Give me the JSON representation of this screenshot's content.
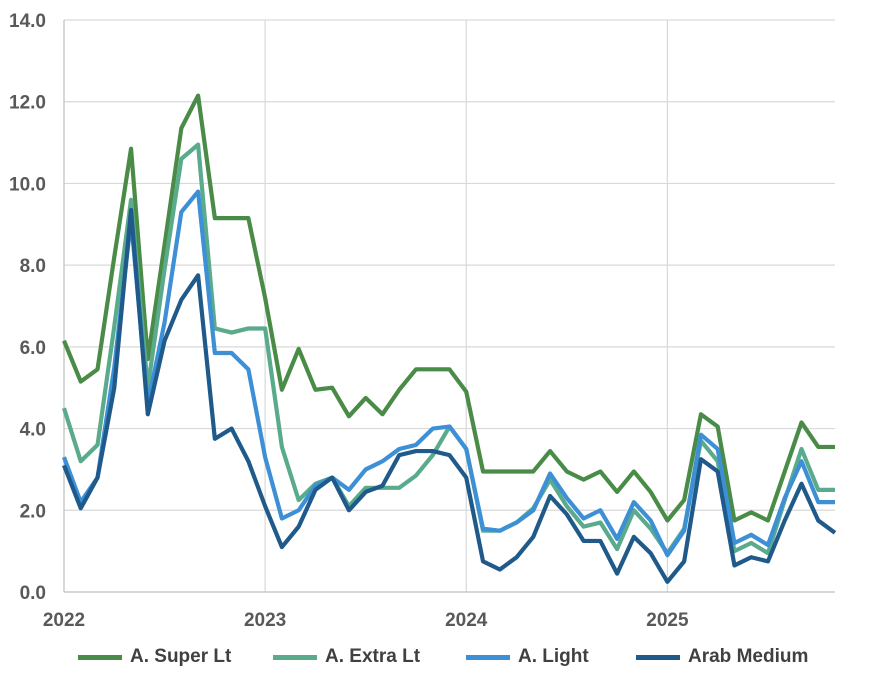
{
  "chart_data": {
    "type": "line",
    "title": "",
    "xlabel": "",
    "ylabel": "",
    "ylim": [
      0,
      14
    ],
    "xlim": [
      2022,
      2025.8333
    ],
    "y_ticks": [
      "0.0",
      "2.0",
      "4.0",
      "6.0",
      "8.0",
      "10.0",
      "12.0",
      "14.0"
    ],
    "x_ticks": [
      {
        "label": "2022",
        "value": 2022
      },
      {
        "label": "2023",
        "value": 2023
      },
      {
        "label": "2024",
        "value": 2024
      },
      {
        "label": "2025",
        "value": 2025
      }
    ],
    "grid": true,
    "legend_position": "bottom",
    "x": [
      2022.0,
      2022.0833,
      2022.1667,
      2022.25,
      2022.3333,
      2022.4167,
      2022.5,
      2022.5833,
      2022.6667,
      2022.75,
      2022.8333,
      2022.9167,
      2023.0,
      2023.0833,
      2023.1667,
      2023.25,
      2023.3333,
      2023.4167,
      2023.5,
      2023.5833,
      2023.6667,
      2023.75,
      2023.8333,
      2023.9167,
      2024.0,
      2024.0833,
      2024.1667,
      2024.25,
      2024.3333,
      2024.4167,
      2024.5,
      2024.5833,
      2024.6667,
      2024.75,
      2024.8333,
      2024.9167,
      2025.0,
      2025.0833,
      2025.1667,
      2025.25,
      2025.3333,
      2025.4167,
      2025.5,
      2025.5833,
      2025.6667,
      2025.75,
      2025.8333
    ],
    "series": [
      {
        "name": "A. Super Lt",
        "color": "#4a8c47",
        "values": [
          6.15,
          5.15,
          5.45,
          8.2,
          10.85,
          5.7,
          8.5,
          11.35,
          12.15,
          9.15,
          9.15,
          9.15,
          7.2,
          4.95,
          5.95,
          4.95,
          5.0,
          4.3,
          4.75,
          4.35,
          4.95,
          5.45,
          5.45,
          5.45,
          4.9,
          2.95,
          2.95,
          2.95,
          2.95,
          3.45,
          2.95,
          2.75,
          2.95,
          2.45,
          2.95,
          2.45,
          1.75,
          2.25,
          4.35,
          4.05,
          1.75,
          1.95,
          1.75,
          2.95,
          4.15,
          3.55,
          3.55
        ]
      },
      {
        "name": "A. Extra Lt",
        "color": "#5aab8c",
        "values": [
          4.5,
          3.2,
          3.6,
          6.5,
          9.6,
          5.0,
          7.9,
          10.6,
          10.95,
          6.45,
          6.35,
          6.45,
          6.45,
          3.55,
          2.25,
          2.65,
          2.8,
          2.1,
          2.55,
          2.55,
          2.55,
          2.85,
          3.35,
          4.05,
          3.5,
          1.5,
          1.5,
          1.7,
          2.05,
          2.75,
          2.1,
          1.6,
          1.7,
          1.05,
          2.0,
          1.55,
          0.95,
          1.55,
          3.7,
          3.2,
          1.0,
          1.2,
          0.95,
          2.25,
          3.5,
          2.5,
          2.5
        ]
      },
      {
        "name": "A. Light",
        "color": "#3d8fd6",
        "values": [
          3.3,
          2.2,
          2.8,
          5.5,
          9.1,
          4.6,
          6.6,
          9.3,
          9.8,
          5.85,
          5.85,
          5.45,
          3.3,
          1.8,
          2.0,
          2.6,
          2.8,
          2.5,
          3.0,
          3.2,
          3.5,
          3.6,
          4.0,
          4.05,
          3.5,
          1.55,
          1.5,
          1.7,
          2.0,
          2.9,
          2.3,
          1.8,
          2.0,
          1.3,
          2.2,
          1.75,
          0.9,
          1.5,
          3.85,
          3.5,
          1.2,
          1.4,
          1.15,
          2.3,
          3.2,
          2.2,
          2.2
        ]
      },
      {
        "name": "Arab Medium",
        "color": "#1f5a8a",
        "values": [
          3.1,
          2.05,
          2.8,
          5.0,
          9.35,
          4.35,
          6.15,
          7.15,
          7.75,
          3.75,
          4.0,
          3.2,
          2.1,
          1.1,
          1.6,
          2.5,
          2.8,
          2.0,
          2.45,
          2.6,
          3.35,
          3.45,
          3.45,
          3.35,
          2.8,
          0.75,
          0.55,
          0.85,
          1.35,
          2.35,
          1.9,
          1.25,
          1.25,
          0.45,
          1.35,
          0.95,
          0.25,
          0.75,
          3.25,
          2.95,
          0.65,
          0.85,
          0.75,
          1.75,
          2.65,
          1.75,
          1.45
        ]
      }
    ]
  }
}
